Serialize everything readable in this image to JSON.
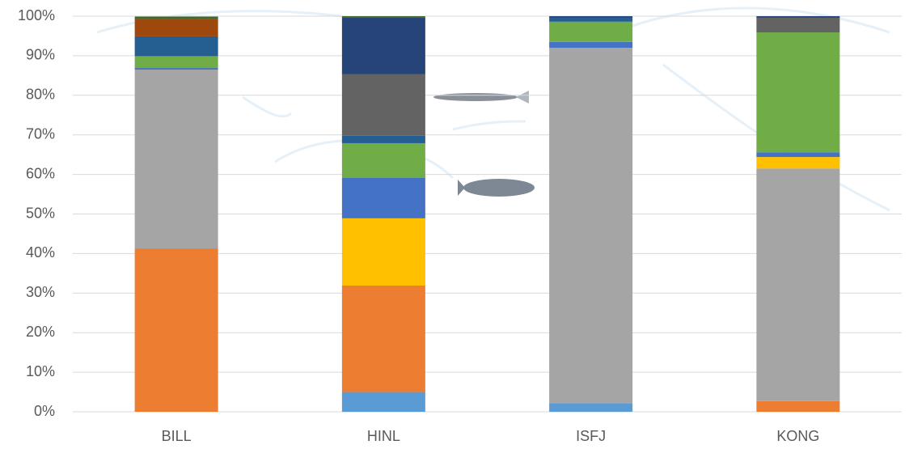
{
  "chart_data": {
    "type": "stacked_bar",
    "categories": [
      "BILL",
      "HINL",
      "ISFJ",
      "KONG"
    ],
    "series": [
      {
        "color": "#5b9bd5",
        "values": [
          0,
          5,
          2.2,
          0
        ]
      },
      {
        "color": "#ed7d31",
        "values": [
          41.3,
          26.9,
          0,
          2.7
        ]
      },
      {
        "color": "#a5a5a5",
        "values": [
          45.2,
          0,
          89.8,
          58.8
        ]
      },
      {
        "color": "#ffc000",
        "values": [
          0,
          17,
          0,
          2.9
        ]
      },
      {
        "color": "#4472c4",
        "values": [
          0.4,
          10.2,
          1.5,
          1.2
        ]
      },
      {
        "color": "#70ad47",
        "values": [
          3,
          8.8,
          5.1,
          30.3
        ]
      },
      {
        "color": "#255e91",
        "values": [
          5,
          1.9,
          1,
          0
        ]
      },
      {
        "color": "#636363",
        "values": [
          0,
          15.5,
          0,
          3.7
        ]
      },
      {
        "color": "#9e480e",
        "values": [
          4.4,
          0,
          0,
          0
        ]
      },
      {
        "color": "#264478",
        "values": [
          0,
          14.3,
          0.4,
          0.4
        ]
      },
      {
        "color": "#43682b",
        "values": [
          0.6,
          0.4,
          0,
          0
        ]
      }
    ],
    "ylim": [
      0,
      100
    ],
    "yticks": [
      {
        "value": 0,
        "label": "0%"
      },
      {
        "value": 10,
        "label": "10%"
      },
      {
        "value": 20,
        "label": "20%"
      },
      {
        "value": 30,
        "label": "30%"
      },
      {
        "value": 40,
        "label": "40%"
      },
      {
        "value": 50,
        "label": "50%"
      },
      {
        "value": 60,
        "label": "60%"
      },
      {
        "value": 70,
        "label": "70%"
      },
      {
        "value": 80,
        "label": "80%"
      },
      {
        "value": 90,
        "label": "90%"
      },
      {
        "value": 100,
        "label": "100%"
      }
    ],
    "grid": true
  }
}
